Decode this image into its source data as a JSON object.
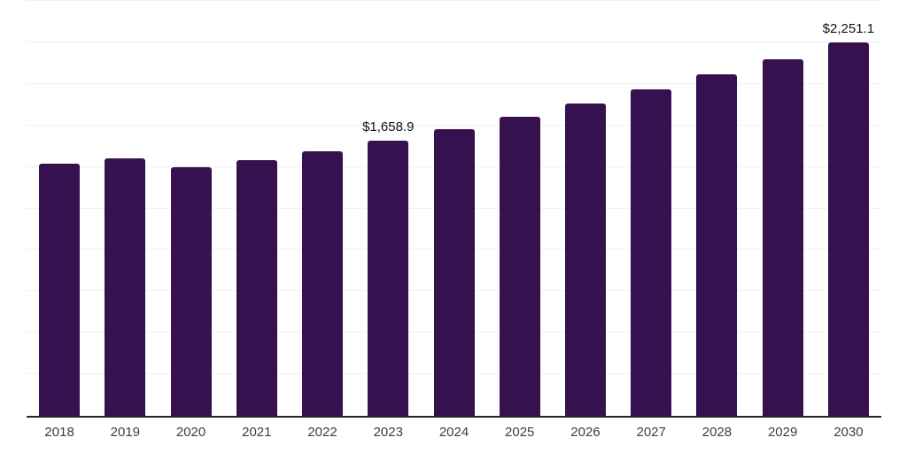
{
  "chart_data": {
    "type": "bar",
    "title": "",
    "xlabel": "",
    "ylabel": "",
    "categories": [
      "2018",
      "2019",
      "2020",
      "2021",
      "2022",
      "2023",
      "2024",
      "2025",
      "2026",
      "2027",
      "2028",
      "2029",
      "2030"
    ],
    "values": [
      1520,
      1550,
      1500,
      1540,
      1595,
      1658.9,
      1725,
      1800,
      1880,
      1965,
      2060,
      2150,
      2251.1
    ],
    "data_labels": [
      null,
      null,
      null,
      null,
      null,
      "$1,658.9",
      null,
      null,
      null,
      null,
      null,
      null,
      "$2,251.1"
    ],
    "ylim": [
      0,
      2500
    ],
    "gridline_step": 250,
    "grid": "horizontal",
    "legend_position": "none",
    "bar_color": "#351150",
    "axis_line_color": "#262626",
    "gridline_color": "#f1f1f3",
    "data_label_color": "#111111",
    "tick_label_color": "#3d3d3d",
    "background_color": "#ffffff"
  }
}
